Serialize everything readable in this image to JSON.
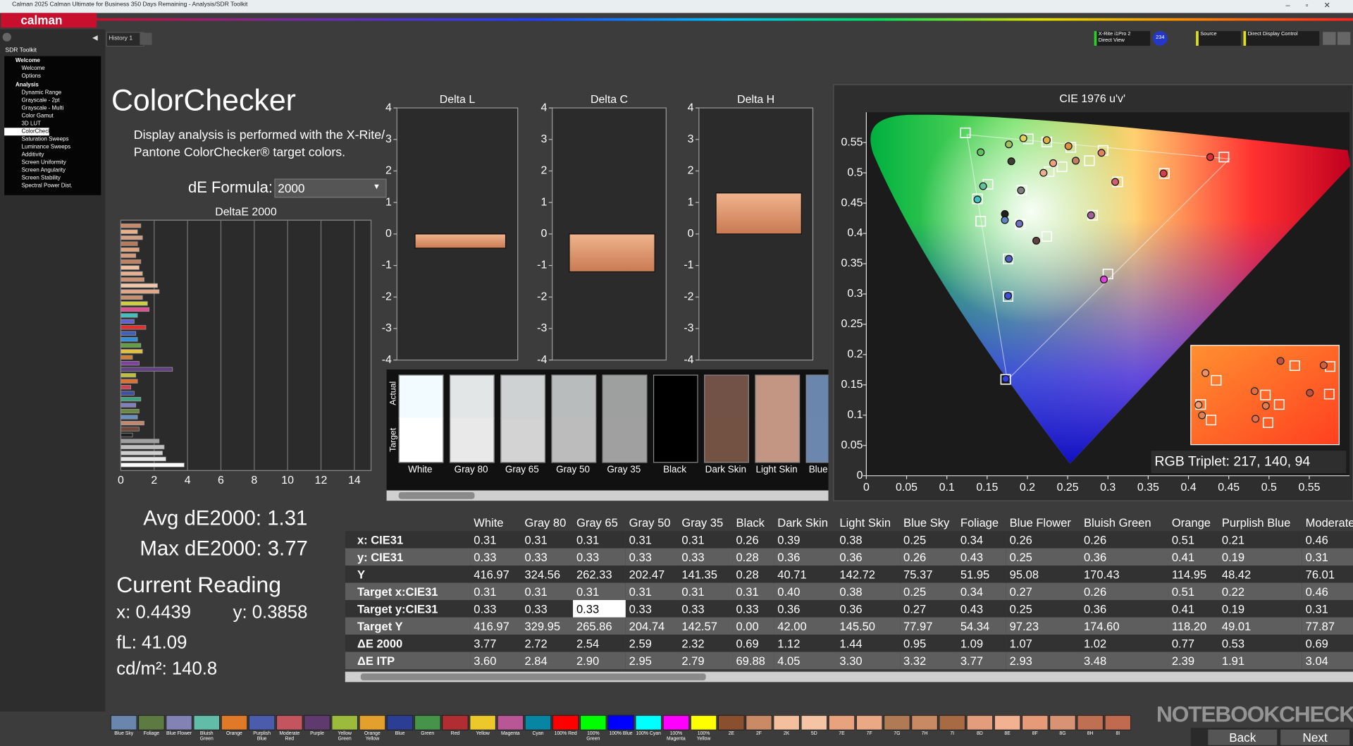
{
  "window": {
    "title": "Calman 2025 Calman Ultimate for Business 350 Days Remaining - Analysis/SDR Toolkit",
    "logo": "calman"
  },
  "tabs": [
    "History 1"
  ],
  "toolbar": {
    "meter": [
      "X-Rite i1Pro 2",
      "Direct View"
    ],
    "badge": "234",
    "source": "Source",
    "display": "Direct Display Control"
  },
  "nav": {
    "title": "SDR Toolkit",
    "groups": [
      {
        "label": "Welcome",
        "items": [
          {
            "label": "Welcome"
          },
          {
            "label": "Options"
          }
        ]
      },
      {
        "label": "Analysis",
        "items": [
          {
            "label": "Dynamic Range"
          },
          {
            "label": "Grayscale - 2pt"
          },
          {
            "label": "Grayscale - Multi"
          },
          {
            "label": "Color Gamut"
          },
          {
            "label": "3D LUT"
          },
          {
            "label": "ColorChecker",
            "selected": true
          },
          {
            "label": "Saturation Sweeps"
          },
          {
            "label": "Luminance Sweeps"
          },
          {
            "label": "Additivity"
          },
          {
            "label": "Screen Uniformity"
          },
          {
            "label": "Screen Angularity"
          },
          {
            "label": "Screen Stability"
          },
          {
            "label": "Spectral Power Dist."
          }
        ]
      }
    ]
  },
  "heading": "ColorChecker",
  "description": [
    "Display analysis is performed with the X-Rite/",
    "Pantone ColorChecker® target colors."
  ],
  "formula": {
    "label": "dE Formula:",
    "value": "2000"
  },
  "stats": {
    "avg": "Avg dE2000: 1.31",
    "max": "Max dE2000: 3.77"
  },
  "reading": {
    "title": "Current Reading",
    "x": "x: 0.4439",
    "y": "y: 0.3858",
    "fl": "fL: 41.09",
    "cdm2": "cd/m²: 140.8"
  },
  "chart_data": [
    {
      "type": "hbar",
      "title": "DeltaE 2000",
      "values": [
        1.2,
        1.0,
        1.3,
        1.0,
        1.1,
        0.9,
        1.2,
        1.1,
        1.3,
        1.4,
        2.2,
        2.3,
        1.3,
        1.6,
        1.7,
        1.0,
        0.8,
        1.5,
        0.9,
        1.0,
        1.2,
        1.3,
        0.7,
        1.1,
        3.1,
        0.9,
        1.0,
        0.6,
        0.8,
        1.2,
        0.9,
        1.1,
        1.0,
        1.4,
        1.1,
        0.7,
        2.3,
        2.6,
        2.5,
        2.7,
        3.8
      ],
      "colors": [
        "#c98a6a",
        "#e9b08c",
        "#d4a083",
        "#b97a5a",
        "#e2a27c",
        "#d89a78",
        "#c08060",
        "#f0c0a0",
        "#e8b090",
        "#d09070",
        "#f2c6a8",
        "#e0a888",
        "#c89070",
        "#cfcf40",
        "#e05090",
        "#40c0c0",
        "#6060d0",
        "#e03030",
        "#4060c0",
        "#3090e0",
        "#60a040",
        "#e0c040",
        "#d08030",
        "#8040a0",
        "#604080",
        "#c0c040",
        "#e07030",
        "#d04050",
        "#4050a0",
        "#40a080",
        "#8080c0",
        "#6a8a40",
        "#6890c0",
        "#c08870",
        "#704838",
        "#202020",
        "#a0a0a0",
        "#c0c0c0",
        "#d0d0d0",
        "#e6e6e6",
        "#ffffff"
      ],
      "xlim": [
        0,
        15
      ],
      "xticks": [
        0,
        2,
        4,
        6,
        8,
        10,
        12,
        14
      ],
      "grid": true
    },
    {
      "type": "bar",
      "title": "Delta L",
      "values": [
        -0.45
      ],
      "color": "#e29a72",
      "ylim": [
        -4,
        4
      ],
      "yticks": [
        -4,
        -3,
        -2,
        -1,
        0,
        1,
        2,
        3,
        4
      ]
    },
    {
      "type": "bar",
      "title": "Delta C",
      "values": [
        -1.2
      ],
      "color": "#e29a72",
      "ylim": [
        -4,
        4
      ],
      "yticks": [
        -4,
        -3,
        -2,
        -1,
        0,
        1,
        2,
        3,
        4
      ]
    },
    {
      "type": "bar",
      "title": "Delta H",
      "values": [
        1.3
      ],
      "color": "#e29a72",
      "ylim": [
        -4,
        4
      ],
      "yticks": [
        -4,
        -3,
        -2,
        -1,
        0,
        1,
        2,
        3,
        4
      ]
    },
    {
      "type": "scatter",
      "title": "CIE 1976 u'v'",
      "xlim": [
        0,
        0.6
      ],
      "ylim": [
        0,
        0.6
      ],
      "xticks": [
        0,
        0.05,
        0.1,
        0.15,
        0.2,
        0.25,
        0.3,
        0.35,
        0.4,
        0.45,
        0.5,
        0.55
      ],
      "yticks": [
        0,
        0.05,
        0.1,
        0.15,
        0.2,
        0.25,
        0.3,
        0.35,
        0.4,
        0.45,
        0.5,
        0.55
      ],
      "gamut": {
        "x": [
          0.451,
          0.125,
          0.175
        ],
        "values": [
          0.523,
          0.563,
          0.158
        ],
        "color": "#ffffff"
      },
      "series": [
        {
          "marker": "square",
          "color": "#ffffff",
          "x": [
            0.123,
            0.201,
            0.224,
            0.254,
            0.294,
            0.444,
            0.37,
            0.312,
            0.193,
            0.151,
            0.138,
            0.142,
            0.191,
            0.224,
            0.281,
            0.176,
            0.3,
            0.176,
            0.173,
            0.277,
            0.227,
            0.243
          ],
          "values": [
            0.566,
            0.556,
            0.551,
            0.542,
            0.537,
            0.526,
            0.499,
            0.485,
            0.471,
            0.481,
            0.457,
            0.42,
            0.415,
            0.395,
            0.43,
            0.358,
            0.333,
            0.296,
            0.159,
            0.52,
            0.502,
            0.51
          ]
        },
        {
          "marker": "circle",
          "x": [
            0.142,
            0.177,
            0.195,
            0.224,
            0.251,
            0.292,
            0.427,
            0.369,
            0.309,
            0.192,
            0.145,
            0.138,
            0.172,
            0.172,
            0.19,
            0.211,
            0.279,
            0.177,
            0.295,
            0.176,
            0.173,
            0.18,
            0.232,
            0.22,
            0.26
          ],
          "values": [
            0.534,
            0.547,
            0.557,
            0.554,
            0.544,
            0.533,
            0.526,
            0.499,
            0.485,
            0.471,
            0.478,
            0.456,
            0.432,
            0.422,
            0.416,
            0.388,
            0.43,
            0.358,
            0.324,
            0.297,
            0.16,
            0.519,
            0.516,
            0.5,
            0.52
          ],
          "colors": [
            "#60c060",
            "#a0c060",
            "#e0d060",
            "#e0b040",
            "#e09040",
            "#e08060",
            "#e03030",
            "#d04050",
            "#d06070",
            "#808080",
            "#60c0a0",
            "#40c0c0",
            "#202020",
            "#6080c0",
            "#7070c0",
            "#604040",
            "#a060a0",
            "#5060c0",
            "#e040e0",
            "#4050d0",
            "#3040e0",
            "#404030",
            "#f0a080",
            "#e8b090",
            "#c08060"
          ]
        }
      ],
      "annotation": "RGB Triplet: 217, 140, 94"
    }
  ],
  "swatches": {
    "row_labels": [
      "Actual",
      "Target"
    ],
    "items": [
      {
        "label": "White",
        "actual": "#f2fbff",
        "target": "#ffffff"
      },
      {
        "label": "Gray 80",
        "actual": "#e3e6e6",
        "target": "#e9e9e9"
      },
      {
        "label": "Gray 65",
        "actual": "#cfd2d2",
        "target": "#d3d3d3"
      },
      {
        "label": "Gray 50",
        "actual": "#b9bcbc",
        "target": "#bcbcbc"
      },
      {
        "label": "Gray 35",
        "actual": "#9e9f9f",
        "target": "#a0a0a0"
      },
      {
        "label": "Black",
        "actual": "#000000",
        "target": "#000000"
      },
      {
        "label": "Dark Skin",
        "actual": "#725146",
        "target": "#735244"
      },
      {
        "label": "Light Skin",
        "actual": "#c29683",
        "target": "#c29682"
      },
      {
        "label": "Blue Sky",
        "actual": "#6a86ad",
        "target": "#6b87ae"
      }
    ]
  },
  "table": {
    "header": [
      "White",
      "Gray 80",
      "Gray 65",
      "Gray 50",
      "Gray 35",
      "Black",
      "Dark Skin",
      "Light Skin",
      "Blue Sky",
      "Foliage",
      "Blue Flower",
      "Bluish Green",
      "Orange",
      "Purplish Blue",
      "Moderate Red"
    ],
    "rows": [
      {
        "label": "x: CIE31",
        "cells": [
          "0.31",
          "0.31",
          "0.31",
          "0.31",
          "0.31",
          "0.26",
          "0.39",
          "0.38",
          "0.25",
          "0.34",
          "0.26",
          "0.26",
          "0.51",
          "0.21",
          "0.46"
        ]
      },
      {
        "label": "y: CIE31",
        "cells": [
          "0.33",
          "0.33",
          "0.33",
          "0.33",
          "0.33",
          "0.28",
          "0.36",
          "0.36",
          "0.26",
          "0.43",
          "0.25",
          "0.36",
          "0.41",
          "0.19",
          "0.31"
        ]
      },
      {
        "label": "Y",
        "cells": [
          "416.97",
          "324.56",
          "262.33",
          "202.47",
          "141.35",
          "0.28",
          "40.71",
          "142.72",
          "75.37",
          "51.95",
          "95.08",
          "170.43",
          "114.95",
          "48.42",
          "76.01"
        ]
      },
      {
        "label": "Target x:CIE31",
        "cells": [
          "0.31",
          "0.31",
          "0.31",
          "0.31",
          "0.31",
          "0.31",
          "0.40",
          "0.38",
          "0.25",
          "0.34",
          "0.27",
          "0.26",
          "0.51",
          "0.22",
          "0.46"
        ]
      },
      {
        "label": "Target y:CIE31",
        "cells": [
          "0.33",
          "0.33",
          "0.33",
          "0.33",
          "0.33",
          "0.33",
          "0.36",
          "0.36",
          "0.27",
          "0.43",
          "0.25",
          "0.36",
          "0.41",
          "0.19",
          "0.31"
        ]
      },
      {
        "label": "Target Y",
        "cells": [
          "416.97",
          "329.95",
          "265.86",
          "204.74",
          "142.57",
          "0.00",
          "42.00",
          "145.50",
          "77.97",
          "54.34",
          "97.23",
          "174.60",
          "118.20",
          "49.01",
          "77.87"
        ]
      },
      {
        "label": "ΔE 2000",
        "cells": [
          "3.77",
          "2.72",
          "2.54",
          "2.59",
          "2.32",
          "0.69",
          "1.12",
          "1.44",
          "0.95",
          "1.09",
          "1.07",
          "1.02",
          "0.77",
          "0.53",
          "0.69"
        ]
      },
      {
        "label": "ΔE ITP",
        "cells": [
          "3.60",
          "2.84",
          "2.90",
          "2.95",
          "2.79",
          "69.88",
          "4.05",
          "3.30",
          "3.32",
          "3.77",
          "2.93",
          "3.48",
          "2.39",
          "1.91",
          "3.04"
        ]
      }
    ]
  },
  "patches": [
    {
      "label": "Blue Sky",
      "color": "#6a86ad"
    },
    {
      "label": "Foliage",
      "color": "#5c7a42"
    },
    {
      "label": "Blue Flower",
      "color": "#8282b5"
    },
    {
      "label": "Bluish Green",
      "color": "#62bda8"
    },
    {
      "label": "Orange",
      "color": "#e07a28"
    },
    {
      "label": "Purplish Blue",
      "color": "#4a5cab"
    },
    {
      "label": "Moderate Red",
      "color": "#c4545e"
    },
    {
      "label": "Purple",
      "color": "#5e3a6e"
    },
    {
      "label": "Yellow Green",
      "color": "#9cba3c"
    },
    {
      "label": "Orange Yellow",
      "color": "#e4a02c"
    },
    {
      "label": "Blue",
      "color": "#2c3e94"
    },
    {
      "label": "Green",
      "color": "#46944a"
    },
    {
      "label": "Red",
      "color": "#b02e32"
    },
    {
      "label": "Yellow",
      "color": "#ecc82a"
    },
    {
      "label": "Magenta",
      "color": "#b85696"
    },
    {
      "label": "Cyan",
      "color": "#0885a2"
    },
    {
      "label": "100% Red",
      "color": "#ff0000"
    },
    {
      "label": "100% Green",
      "color": "#00ff00"
    },
    {
      "label": "100% Blue",
      "color": "#0000ff"
    },
    {
      "label": "100% Cyan",
      "color": "#00ffff"
    },
    {
      "label": "100% Magenta",
      "color": "#ff00ff"
    },
    {
      "label": "100% Yellow",
      "color": "#ffff00"
    },
    {
      "label": "2E",
      "color": "#8a4f2e"
    },
    {
      "label": "2F",
      "color": "#c98a66"
    },
    {
      "label": "2K",
      "color": "#f2c09c"
    },
    {
      "label": "5D",
      "color": "#f5c4a4"
    },
    {
      "label": "7E",
      "color": "#e8a27e"
    },
    {
      "label": "7F",
      "color": "#eaa884"
    },
    {
      "label": "7G",
      "color": "#b07a54"
    },
    {
      "label": "7H",
      "color": "#c78a62"
    },
    {
      "label": "7I",
      "color": "#a86a42"
    },
    {
      "label": "8D",
      "color": "#e49d7c"
    },
    {
      "label": "8E",
      "color": "#f2b292"
    },
    {
      "label": "8F",
      "color": "#e69a78"
    },
    {
      "label": "8G",
      "color": "#d89274"
    },
    {
      "label": "8H",
      "color": "#c07052"
    },
    {
      "label": "8I",
      "color": "#c06a50"
    }
  ],
  "buttons": [
    "Back",
    "Next"
  ],
  "watermark": "NOTEBOOKCHECK"
}
